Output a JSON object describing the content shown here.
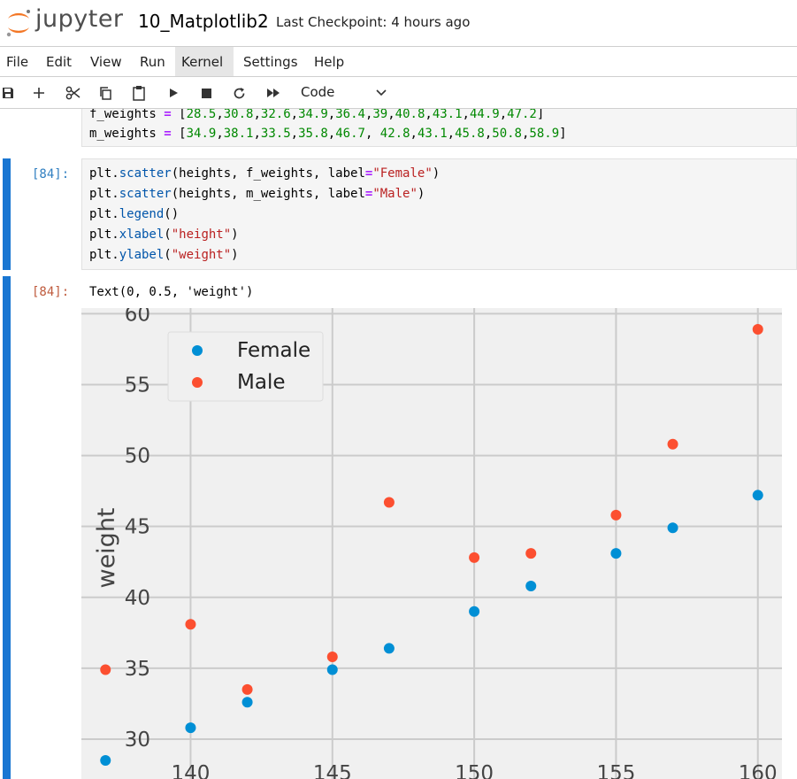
{
  "header": {
    "logo_text": "jupyter",
    "notebook_title": "10_Matplotlib2",
    "checkpoint": "Last Checkpoint: 4 hours ago"
  },
  "menu": [
    "File",
    "Edit",
    "View",
    "Run",
    "Kernel",
    "Settings",
    "Help"
  ],
  "toolbar": {
    "icons": [
      "save-icon",
      "add-cell-icon",
      "cut-icon",
      "copy-icon",
      "paste-icon",
      "run-icon",
      "stop-icon",
      "restart-icon",
      "fast-forward-icon"
    ],
    "cell_type": "Code"
  },
  "cells": [
    {
      "prompt": "",
      "lines": [
        "f_weights = [28.5,30.8,32.6,34.9,36.4,39,40.8,43.1,44.9,47.2]",
        "m_weights = [34.9,38.1,33.5,35.8,46.7, 42.8,43.1,45.8,50.8,58.9]"
      ]
    },
    {
      "prompt": "[84]:",
      "lines": [
        "plt.scatter(heights, f_weights, label=\"Female\")",
        "plt.scatter(heights, m_weights, label=\"Male\")",
        "plt.legend()",
        "plt.xlabel(\"height\")",
        "plt.ylabel(\"weight\")"
      ]
    }
  ],
  "output": {
    "prompt": "[84]:",
    "text": "Text(0, 0.5, 'weight')"
  },
  "chart_data": {
    "type": "scatter",
    "x": [
      137,
      140,
      142,
      145,
      147,
      150,
      152,
      155,
      157,
      160
    ],
    "series": [
      {
        "name": "Female",
        "color": "#008fd5",
        "values": [
          28.5,
          30.8,
          32.6,
          34.9,
          36.4,
          39,
          40.8,
          43.1,
          44.9,
          47.2
        ]
      },
      {
        "name": "Male",
        "color": "#fc4f30",
        "values": [
          34.9,
          38.1,
          33.5,
          35.8,
          46.7,
          42.8,
          43.1,
          45.8,
          50.8,
          58.9
        ]
      }
    ],
    "ylabel": "weight",
    "xlabel": "",
    "xticks": [
      140,
      145,
      150,
      155,
      160
    ],
    "yticks": [
      30,
      35,
      40,
      45,
      50,
      55,
      60
    ],
    "xlim": [
      136.15,
      160.85
    ],
    "ylim": [
      27.0,
      60.4
    ],
    "grid": true,
    "legend": "upper-left",
    "style": "fivethirtyeight",
    "background": "#f0f0f0"
  }
}
